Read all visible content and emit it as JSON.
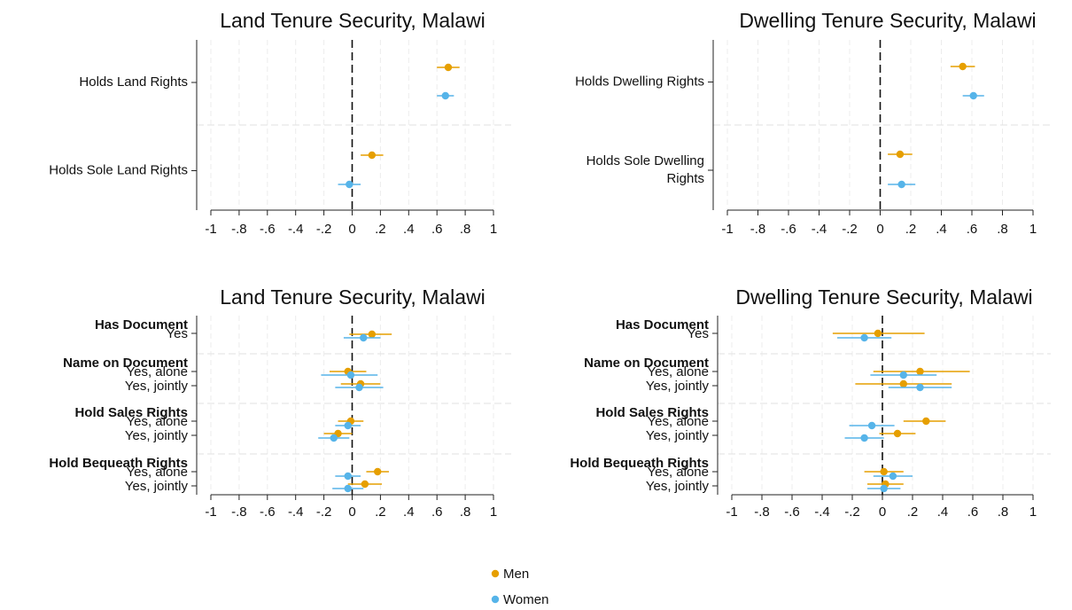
{
  "chart_data": [
    {
      "type": "scatter",
      "id": "p1",
      "title": "Land Tenure Security, Malawi",
      "xlim": [
        -1,
        1
      ],
      "xticks": [
        "-1",
        "-.8",
        "-.6",
        "-.4",
        "-.2",
        "0",
        ".2",
        ".4",
        ".6",
        ".8",
        "1"
      ],
      "grid": true,
      "rows": [
        {
          "lines": [
            "Holds Land Rights"
          ],
          "bold": false,
          "points": [
            {
              "series": 0,
              "est": 0.68,
              "lo": 0.6,
              "hi": 0.76
            },
            {
              "series": 1,
              "est": 0.66,
              "lo": 0.6,
              "hi": 0.72
            }
          ]
        },
        {
          "lines": [
            "Holds Sole Land Rights"
          ],
          "bold": false,
          "points": [
            {
              "series": 0,
              "est": 0.14,
              "lo": 0.06,
              "hi": 0.22
            },
            {
              "series": 1,
              "est": -0.02,
              "lo": -0.1,
              "hi": 0.06
            }
          ]
        }
      ]
    },
    {
      "type": "scatter",
      "id": "p2",
      "title": "Dwelling Tenure Security, Malawi",
      "xlim": [
        -1,
        1
      ],
      "xticks": [
        "-1",
        "-.8",
        "-.6",
        "-.4",
        "-.2",
        "0",
        ".2",
        ".4",
        ".6",
        ".8",
        "1"
      ],
      "grid": true,
      "rows": [
        {
          "lines": [
            "Holds Dwelling Rights"
          ],
          "bold": false,
          "points": [
            {
              "series": 0,
              "est": 0.54,
              "lo": 0.46,
              "hi": 0.62
            },
            {
              "series": 1,
              "est": 0.61,
              "lo": 0.54,
              "hi": 0.68
            }
          ]
        },
        {
          "lines": [
            "Holds Sole Dwelling",
            "Rights"
          ],
          "bold": false,
          "points": [
            {
              "series": 0,
              "est": 0.13,
              "lo": 0.05,
              "hi": 0.21
            },
            {
              "series": 1,
              "est": 0.14,
              "lo": 0.05,
              "hi": 0.23
            }
          ]
        }
      ]
    },
    {
      "type": "scatter",
      "id": "p3",
      "title": "Land Tenure Security, Malawi",
      "xlim": [
        -1,
        1
      ],
      "xticks": [
        "-1",
        "-.8",
        "-.6",
        "-.4",
        "-.2",
        "0",
        ".2",
        ".4",
        ".6",
        ".8",
        "1"
      ],
      "grid": true,
      "groups": [
        {
          "header": "Has Document",
          "rows": [
            {
              "label": "Yes",
              "points": [
                {
                  "series": 0,
                  "est": 0.14,
                  "lo": -0.02,
                  "hi": 0.28
                },
                {
                  "series": 1,
                  "est": 0.08,
                  "lo": -0.06,
                  "hi": 0.2
                }
              ]
            }
          ]
        },
        {
          "header": "Name on Document",
          "rows": [
            {
              "label": "Yes, alone",
              "points": [
                {
                  "series": 0,
                  "est": -0.03,
                  "lo": -0.16,
                  "hi": 0.1
                },
                {
                  "series": 1,
                  "est": -0.01,
                  "lo": -0.22,
                  "hi": 0.18
                }
              ]
            },
            {
              "label": "Yes, jointly",
              "points": [
                {
                  "series": 0,
                  "est": 0.06,
                  "lo": -0.08,
                  "hi": 0.2
                },
                {
                  "series": 1,
                  "est": 0.05,
                  "lo": -0.12,
                  "hi": 0.22
                }
              ]
            }
          ]
        },
        {
          "header": "Hold Sales Rights",
          "rows": [
            {
              "label": "Yes, alone",
              "points": [
                {
                  "series": 0,
                  "est": -0.01,
                  "lo": -0.1,
                  "hi": 0.08
                },
                {
                  "series": 1,
                  "est": -0.03,
                  "lo": -0.12,
                  "hi": 0.06
                }
              ]
            },
            {
              "label": "Yes, jointly",
              "points": [
                {
                  "series": 0,
                  "est": -0.1,
                  "lo": -0.2,
                  "hi": 0.0
                },
                {
                  "series": 1,
                  "est": -0.13,
                  "lo": -0.24,
                  "hi": -0.02
                }
              ]
            }
          ]
        },
        {
          "header": "Hold Bequeath Rights",
          "rows": [
            {
              "label": "Yes, alone",
              "points": [
                {
                  "series": 0,
                  "est": 0.18,
                  "lo": 0.1,
                  "hi": 0.26
                },
                {
                  "series": 1,
                  "est": -0.03,
                  "lo": -0.12,
                  "hi": 0.06
                }
              ]
            },
            {
              "label": "Yes, jointly",
              "points": [
                {
                  "series": 0,
                  "est": 0.09,
                  "lo": -0.03,
                  "hi": 0.21
                },
                {
                  "series": 1,
                  "est": -0.03,
                  "lo": -0.14,
                  "hi": 0.08
                }
              ]
            }
          ]
        }
      ]
    },
    {
      "type": "scatter",
      "id": "p4",
      "title": "Dwelling Tenure Security, Malawi",
      "xlim": [
        -1,
        1
      ],
      "xticks": [
        "-1",
        "-.8",
        "-.6",
        "-.4",
        "-.2",
        "0",
        ".2",
        ".4",
        ".6",
        ".8",
        "1"
      ],
      "grid": true,
      "groups": [
        {
          "header": "Has Document",
          "rows": [
            {
              "label": "Yes",
              "points": [
                {
                  "series": 0,
                  "est": -0.03,
                  "lo": -0.33,
                  "hi": 0.28
                },
                {
                  "series": 1,
                  "est": -0.12,
                  "lo": -0.3,
                  "hi": 0.06
                }
              ]
            }
          ]
        },
        {
          "header": "Name on Document",
          "rows": [
            {
              "label": "Yes, alone",
              "points": [
                {
                  "series": 0,
                  "est": 0.25,
                  "lo": -0.06,
                  "hi": 0.58
                },
                {
                  "series": 1,
                  "est": 0.14,
                  "lo": -0.08,
                  "hi": 0.36
                }
              ]
            },
            {
              "label": "Yes, jointly",
              "points": [
                {
                  "series": 0,
                  "est": 0.14,
                  "lo": -0.18,
                  "hi": 0.46
                },
                {
                  "series": 1,
                  "est": 0.25,
                  "lo": 0.04,
                  "hi": 0.46
                }
              ]
            }
          ]
        },
        {
          "header": "Hold Sales Rights",
          "rows": [
            {
              "label": "Yes, alone",
              "points": [
                {
                  "series": 0,
                  "est": 0.29,
                  "lo": 0.14,
                  "hi": 0.42
                },
                {
                  "series": 1,
                  "est": -0.07,
                  "lo": -0.22,
                  "hi": 0.08
                }
              ]
            },
            {
              "label": "Yes, jointly",
              "points": [
                {
                  "series": 0,
                  "est": 0.1,
                  "lo": -0.02,
                  "hi": 0.22
                },
                {
                  "series": 1,
                  "est": -0.12,
                  "lo": -0.25,
                  "hi": 0.01
                }
              ]
            }
          ]
        },
        {
          "header": "Hold Bequeath Rights",
          "rows": [
            {
              "label": "Yes, alone",
              "points": [
                {
                  "series": 0,
                  "est": 0.01,
                  "lo": -0.12,
                  "hi": 0.14
                },
                {
                  "series": 1,
                  "est": 0.07,
                  "lo": -0.06,
                  "hi": 0.2
                }
              ]
            },
            {
              "label": "Yes, jointly",
              "points": [
                {
                  "series": 0,
                  "est": 0.02,
                  "lo": -0.1,
                  "hi": 0.14
                },
                {
                  "series": 1,
                  "est": 0.01,
                  "lo": -0.1,
                  "hi": 0.12
                }
              ]
            }
          ]
        }
      ]
    }
  ],
  "series": [
    {
      "name": "Men",
      "color": "#E69F00"
    },
    {
      "name": "Women",
      "color": "#56B4E9"
    }
  ],
  "legend": {
    "placement": "bottom-center"
  }
}
